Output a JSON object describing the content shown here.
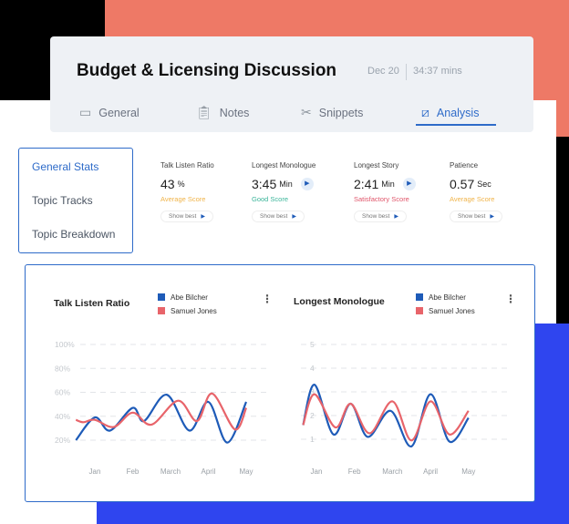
{
  "header": {
    "title": "Budget & Licensing Discussion",
    "date": "Dec 20",
    "duration": "34:37 mins"
  },
  "tabs": [
    {
      "label": "General",
      "icon": "video-chat-icon"
    },
    {
      "label": "Notes",
      "icon": "clipboard-icon"
    },
    {
      "label": "Snippets",
      "icon": "scissors-icon"
    },
    {
      "label": "Analysis",
      "icon": "chart-icon",
      "active": true
    }
  ],
  "sidebar": {
    "items": [
      {
        "label": "General Stats",
        "active": true
      },
      {
        "label": "Topic Tracks"
      },
      {
        "label": "Topic Breakdown"
      }
    ]
  },
  "stats": [
    {
      "label": "Talk Listen Ratio",
      "value": "43",
      "unit": "%",
      "score": "Average Score",
      "score_color": "#f0b44a",
      "play": false,
      "button": "Show best"
    },
    {
      "label": "Longest Monologue",
      "value": "3:45",
      "unit": "Min",
      "score": "Good Score",
      "score_color": "#3bb59a",
      "play": true,
      "button": "Show best"
    },
    {
      "label": "Longest Story",
      "value": "2:41",
      "unit": "Min",
      "score": "Satisfactory Score",
      "score_color": "#e0566b",
      "play": true,
      "button": "Show best"
    },
    {
      "label": "Patience",
      "value": "0.57",
      "unit": "Sec",
      "score": "Average Score",
      "score_color": "#f0b44a",
      "play": false,
      "button": "Show best"
    }
  ],
  "colors": {
    "accent": "#2e6bc9",
    "series_blue": "#1e5bb8",
    "series_red": "#e8646a"
  },
  "chart_data": [
    {
      "type": "line",
      "title": "Talk Listen Ratio",
      "categories": [
        "Jan",
        "Feb",
        "March",
        "April",
        "May"
      ],
      "yticks": [
        "20%",
        "40%",
        "60%",
        "80%",
        "100%"
      ],
      "ylim": [
        0,
        100
      ],
      "grid": true,
      "legend": "top",
      "series": [
        {
          "name": "Abe Bilcher",
          "color": "#1e5bb8",
          "points": [
            [
              -0.5,
              20
            ],
            [
              0,
              39
            ],
            [
              0.4,
              28
            ],
            [
              1,
              47
            ],
            [
              1.3,
              36
            ],
            [
              1.9,
              58
            ],
            [
              2.5,
              28
            ],
            [
              3,
              52
            ],
            [
              3.5,
              18
            ],
            [
              4,
              52
            ]
          ]
        },
        {
          "name": "Samuel Jones",
          "color": "#e8646a",
          "points": [
            [
              -0.5,
              37
            ],
            [
              -0.3,
              35
            ],
            [
              0,
              37
            ],
            [
              0.5,
              31
            ],
            [
              1,
              43
            ],
            [
              1.5,
              33
            ],
            [
              2.2,
              53
            ],
            [
              2.7,
              36
            ],
            [
              3.1,
              59
            ],
            [
              3.7,
              29
            ],
            [
              4,
              47
            ]
          ]
        }
      ]
    },
    {
      "type": "line",
      "title": "Longest Monologue",
      "categories": [
        "Jan",
        "Feb",
        "March",
        "April",
        "May"
      ],
      "yticks": [
        "1",
        "2",
        "3",
        "4",
        "5"
      ],
      "ylim": [
        0,
        5
      ],
      "grid": true,
      "legend": "top",
      "series": [
        {
          "name": "Abe Bilcher",
          "color": "#1e5bb8",
          "points": [
            [
              -0.35,
              1.6
            ],
            [
              -0.05,
              3.3
            ],
            [
              0.45,
              1.2
            ],
            [
              0.9,
              2.5
            ],
            [
              1.35,
              1.1
            ],
            [
              1.95,
              2.2
            ],
            [
              2.5,
              0.7
            ],
            [
              3,
              2.9
            ],
            [
              3.5,
              0.9
            ],
            [
              4,
              1.9
            ]
          ]
        },
        {
          "name": "Samuel Jones",
          "color": "#e8646a",
          "points": [
            [
              -0.35,
              1.6
            ],
            [
              -0.05,
              2.9
            ],
            [
              0.5,
              1.5
            ],
            [
              0.9,
              2.5
            ],
            [
              1.4,
              1.25
            ],
            [
              2,
              2.6
            ],
            [
              2.5,
              0.95
            ],
            [
              3,
              2.6
            ],
            [
              3.5,
              1.2
            ],
            [
              4,
              2.2
            ]
          ]
        }
      ]
    }
  ]
}
